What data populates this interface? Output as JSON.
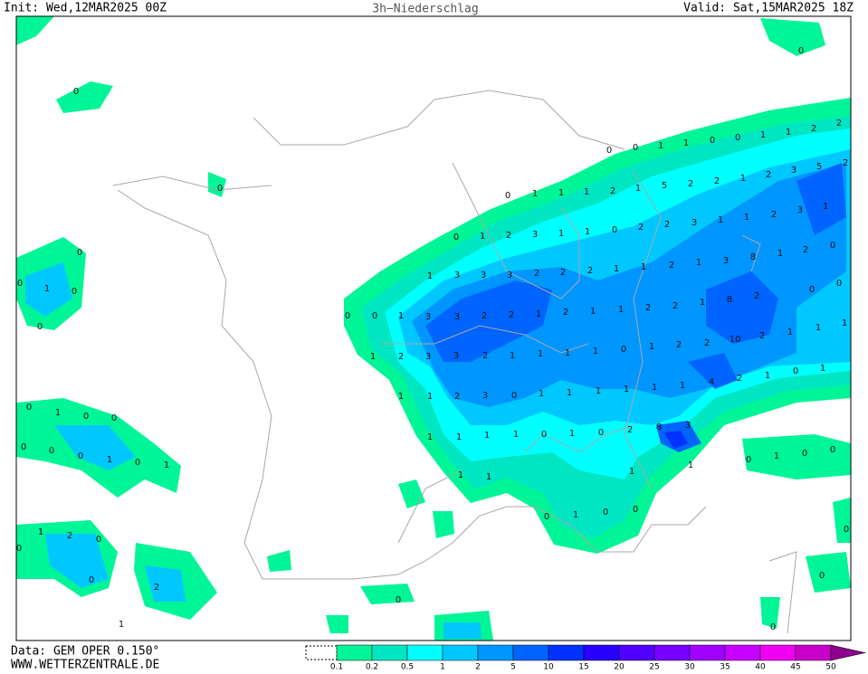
{
  "header": {
    "init": "Init: Wed,12MAR2025 00Z",
    "title": "3h−Niederschlag",
    "valid": "Valid: Sat,15MAR2025 18Z"
  },
  "footer": {
    "data_source": "Data: GEM OPER 0.150°",
    "website": "WWW.WETTERZENTRALE.DE"
  },
  "legend": {
    "labels": [
      0.1,
      0.2,
      0.5,
      1,
      2,
      5,
      10,
      15,
      20,
      25,
      30,
      35,
      40,
      45,
      50
    ],
    "colors": [
      "#00f596",
      "#00e6c3",
      "#00ffff",
      "#00c8ff",
      "#0096ff",
      "#0064ff",
      "#0032ff",
      "#2800ff",
      "#5000ff",
      "#7800ff",
      "#a000ff",
      "#c800ff",
      "#f000f0",
      "#c800c8",
      "#8c008c"
    ]
  },
  "map_labels": [
    0,
    0,
    0,
    0,
    0,
    1,
    0,
    0,
    0,
    0,
    1,
    1,
    0,
    0,
    1,
    1,
    2,
    2,
    0,
    1,
    1,
    1,
    2,
    1,
    5,
    2,
    2,
    1,
    2,
    3,
    5,
    2,
    0,
    1,
    2,
    3,
    1,
    1,
    0,
    2,
    2,
    3,
    1,
    1,
    2,
    3,
    1,
    1,
    3,
    3,
    3,
    2,
    2,
    2,
    1,
    1,
    2,
    1,
    3,
    8,
    1,
    2,
    0,
    0,
    0,
    1,
    3,
    3,
    2,
    2,
    1,
    2,
    1,
    1,
    2,
    2,
    1,
    8,
    2,
    0,
    0,
    1,
    2,
    3,
    3,
    2,
    1,
    1,
    1,
    1,
    0,
    1,
    2,
    2,
    10,
    2,
    1,
    1,
    1,
    1,
    1,
    2,
    3,
    0,
    1,
    1,
    1,
    1,
    1,
    1,
    4,
    2,
    1,
    0,
    1,
    0,
    1,
    0,
    0,
    1,
    1,
    1,
    1,
    0,
    1,
    0,
    2,
    8,
    3,
    0,
    0,
    0,
    1,
    0,
    1,
    0,
    1,
    0,
    0,
    1,
    1,
    1,
    1,
    0,
    1,
    0,
    0,
    1,
    2,
    0,
    0,
    0,
    2,
    0,
    0,
    0,
    1,
    0
  ]
}
